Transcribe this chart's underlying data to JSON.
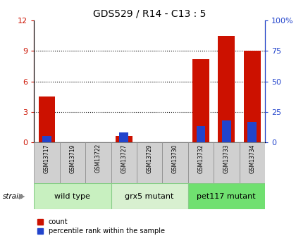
{
  "title": "GDS529 / R14 - C13 : 5",
  "samples": [
    "GSM13717",
    "GSM13719",
    "GSM13722",
    "GSM13727",
    "GSM13729",
    "GSM13730",
    "GSM13732",
    "GSM13733",
    "GSM13734"
  ],
  "counts": [
    4.5,
    0,
    0,
    0.6,
    0,
    0,
    8.2,
    10.5,
    9.0
  ],
  "percentile": [
    5,
    0,
    0,
    8,
    0,
    0,
    13,
    18,
    17
  ],
  "groups": [
    {
      "label": "wild type",
      "start": 0,
      "end": 3,
      "color": "#c8f0c0"
    },
    {
      "label": "grx5 mutant",
      "start": 3,
      "end": 6,
      "color": "#d8f0d0"
    },
    {
      "label": "pet117 mutant",
      "start": 6,
      "end": 9,
      "color": "#70e070"
    }
  ],
  "ylim_left": [
    0,
    12
  ],
  "ylim_right": [
    0,
    100
  ],
  "yticks_left": [
    0,
    3,
    6,
    9,
    12
  ],
  "ytick_labels_left": [
    "0",
    "3",
    "6",
    "9",
    "12"
  ],
  "yticks_right": [
    0,
    25,
    50,
    75,
    100
  ],
  "ytick_labels_right": [
    "0",
    "25",
    "50",
    "75",
    "100%"
  ],
  "count_color": "#cc1100",
  "percentile_color": "#2244cc",
  "legend_count": "count",
  "legend_percentile": "percentile rank within the sample"
}
